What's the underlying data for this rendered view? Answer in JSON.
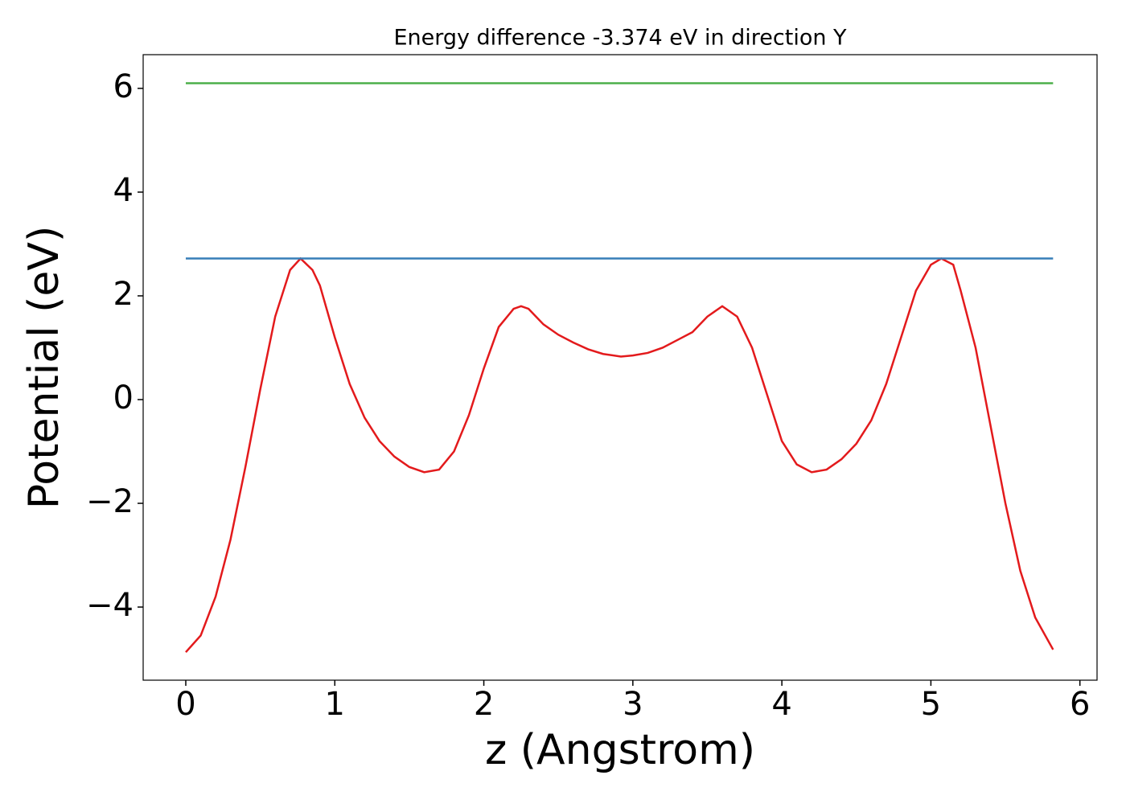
{
  "chart_data": {
    "type": "line",
    "title": "Energy difference -3.374 eV in direction Y",
    "x_label": "z (Angstrom)",
    "y_label": "Potential (eV)",
    "xlim": [
      -0.286,
      6.115
    ],
    "ylim": [
      -5.41,
      6.65
    ],
    "xticks": [
      0,
      1,
      2,
      3,
      4,
      5,
      6
    ],
    "yticks": [
      {
        "value": -4,
        "label": "−4"
      },
      {
        "value": -2,
        "label": "−2"
      },
      0,
      2,
      4,
      6
    ],
    "grid": false,
    "series": [
      {
        "color": "#e31a1c",
        "x": [
          0,
          0.1,
          0.2,
          0.3,
          0.4,
          0.5,
          0.6,
          0.7,
          0.77,
          0.85,
          0.9,
          1.0,
          1.1,
          1.2,
          1.3,
          1.4,
          1.5,
          1.6,
          1.7,
          1.8,
          1.9,
          2.0,
          2.1,
          2.2,
          2.25,
          2.3,
          2.4,
          2.5,
          2.6,
          2.7,
          2.8,
          2.92,
          3.0,
          3.1,
          3.2,
          3.3,
          3.4,
          3.5,
          3.6,
          3.7,
          3.8,
          3.9,
          4.0,
          4.1,
          4.2,
          4.3,
          4.4,
          4.5,
          4.6,
          4.7,
          4.8,
          4.9,
          5.0,
          5.07,
          5.15,
          5.2,
          5.3,
          5.4,
          5.5,
          5.6,
          5.7,
          5.82
        ],
        "values": [
          -4.87,
          -4.55,
          -3.8,
          -2.7,
          -1.3,
          0.2,
          1.6,
          2.5,
          2.72,
          2.5,
          2.2,
          1.2,
          0.3,
          -0.35,
          -0.8,
          -1.1,
          -1.3,
          -1.4,
          -1.35,
          -1.0,
          -0.3,
          0.6,
          1.4,
          1.75,
          1.8,
          1.75,
          1.45,
          1.25,
          1.1,
          0.97,
          0.88,
          0.83,
          0.85,
          0.9,
          1.0,
          1.15,
          1.3,
          1.6,
          1.8,
          1.6,
          1.0,
          0.1,
          -0.8,
          -1.25,
          -1.4,
          -1.35,
          -1.15,
          -0.85,
          -0.4,
          0.3,
          1.2,
          2.1,
          2.6,
          2.72,
          2.6,
          2.1,
          1.0,
          -0.5,
          -2.0,
          -3.3,
          -4.2,
          -4.82
        ]
      },
      {
        "color": "#377eb8",
        "x": [
          0,
          5.82
        ],
        "values": [
          2.72,
          2.72
        ]
      },
      {
        "color": "#4daf4a",
        "x": [
          0,
          5.82
        ],
        "values": [
          6.1,
          6.1
        ]
      }
    ]
  }
}
